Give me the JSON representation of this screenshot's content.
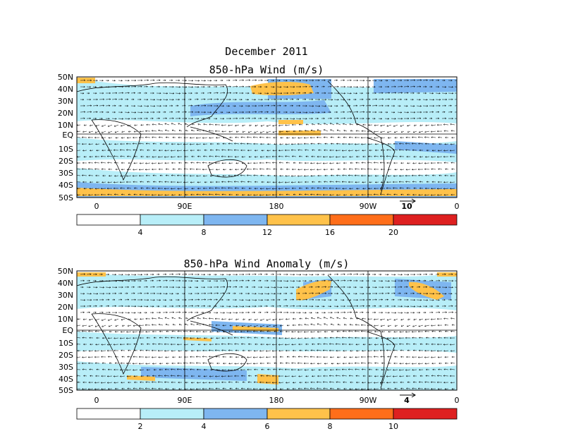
{
  "title": "December 2011",
  "colors": {
    "white": "#ffffff",
    "light_blue": "#b8eef8",
    "blue": "#7eb6f0",
    "light_orange": "#ffc24a",
    "orange": "#ff6e1a",
    "red": "#de2020"
  },
  "panels": [
    {
      "title": "850-hPa Wind (m/s)",
      "lat_labels": [
        "50N",
        "40N",
        "30N",
        "20N",
        "10N",
        "EQ",
        "10S",
        "20S",
        "30S",
        "40S",
        "50S"
      ],
      "lon_labels": [
        "0",
        "90E",
        "180",
        "90W",
        "0"
      ],
      "ref_vector_label": "10",
      "colorbar_labels": [
        "4",
        "8",
        "12",
        "16",
        "20"
      ]
    },
    {
      "title": "850-hPa Wind Anomaly (m/s)",
      "lat_labels": [
        "50N",
        "40N",
        "30N",
        "20N",
        "10N",
        "EQ",
        "10S",
        "20S",
        "30S",
        "40S",
        "50S"
      ],
      "lon_labels": [
        "0",
        "90E",
        "180",
        "90W",
        "0"
      ],
      "ref_vector_label": "4",
      "colorbar_labels": [
        "2",
        "4",
        "6",
        "8",
        "10"
      ]
    }
  ]
}
